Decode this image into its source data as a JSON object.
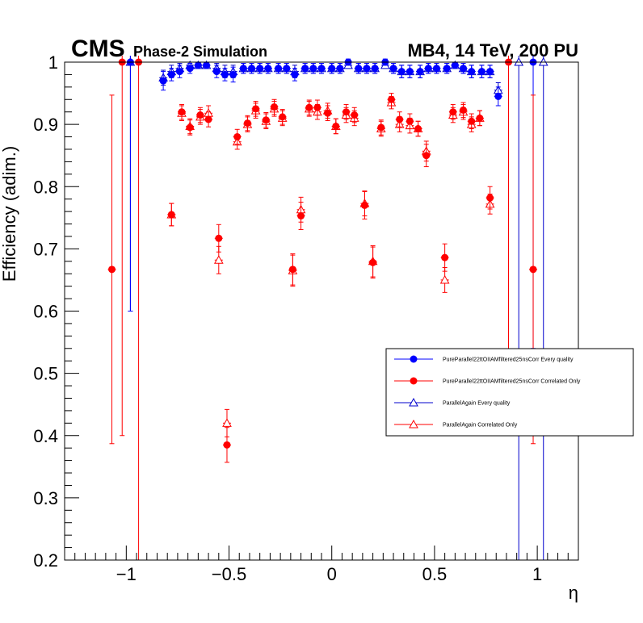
{
  "chart_data": {
    "type": "scatter",
    "title_left_bold": "CMS",
    "title_left_sub": "Phase-2 Simulation",
    "title_right": "MB4, 14 TeV, 200 PU",
    "xlabel": "η",
    "ylabel": "Efficiency (adim.)",
    "xlim": [
      -1.3,
      1.2
    ],
    "ylim": [
      0.2,
      1.0
    ],
    "xticks": [
      -1,
      -0.5,
      0,
      0.5,
      1
    ],
    "xtick_labels": [
      "−1",
      "−0.5",
      "0",
      "0.5",
      "1"
    ],
    "yticks": [
      0.2,
      0.3,
      0.4,
      0.5,
      0.6,
      0.7,
      0.8,
      0.9,
      1.0
    ],
    "ytick_labels": [
      "0.2",
      "0.3",
      "0.4",
      "0.5",
      "0.6",
      "0.7",
      "0.8",
      "0.9",
      "1"
    ],
    "legend_position": "center-right",
    "series": [
      {
        "name": "PureParallel22ttOIIAMfiltered25nsCorr Every quality",
        "color": "#0000ff",
        "marker": "filled-circle",
        "x": [
          -0.98,
          -0.82,
          -0.78,
          -0.74,
          -0.69,
          -0.65,
          -0.61,
          -0.56,
          -0.52,
          -0.48,
          -0.43,
          -0.39,
          -0.35,
          -0.31,
          -0.26,
          -0.22,
          -0.18,
          -0.13,
          -0.09,
          -0.05,
          0.0,
          0.04,
          0.08,
          0.13,
          0.17,
          0.21,
          0.26,
          0.3,
          0.34,
          0.38,
          0.43,
          0.47,
          0.51,
          0.56,
          0.6,
          0.64,
          0.68,
          0.73,
          0.77,
          0.81,
          0.98
        ],
        "y": [
          1.0,
          0.97,
          0.98,
          0.985,
          0.99,
          0.995,
          0.995,
          0.985,
          0.98,
          0.98,
          0.99,
          0.99,
          0.99,
          0.99,
          0.99,
          0.99,
          0.98,
          0.99,
          0.99,
          0.99,
          0.99,
          0.99,
          1.0,
          0.99,
          0.99,
          0.99,
          1.0,
          0.99,
          0.985,
          0.985,
          0.985,
          0.99,
          0.99,
          0.99,
          0.995,
          0.99,
          0.985,
          0.985,
          0.985,
          0.945,
          1.0
        ],
        "yerr": [
          0.4,
          0.015,
          0.01,
          0.01,
          0.008,
          0.005,
          0.005,
          0.01,
          0.01,
          0.012,
          0.008,
          0.008,
          0.008,
          0.008,
          0.008,
          0.008,
          0.01,
          0.008,
          0.008,
          0.008,
          0.008,
          0.008,
          0.005,
          0.008,
          0.008,
          0.008,
          0.005,
          0.008,
          0.01,
          0.01,
          0.01,
          0.008,
          0.008,
          0.008,
          0.005,
          0.008,
          0.01,
          0.01,
          0.01,
          0.015,
          0.46
        ]
      },
      {
        "name": "PureParallel22ttOIIAMfiltered25nsCorr Correlated Only",
        "color": "#ff0000",
        "marker": "filled-circle",
        "x": [
          -1.07,
          -1.02,
          -0.94,
          -0.78,
          -0.73,
          -0.69,
          -0.64,
          -0.6,
          -0.55,
          -0.51,
          -0.46,
          -0.41,
          -0.37,
          -0.32,
          -0.28,
          -0.24,
          -0.19,
          -0.15,
          -0.11,
          -0.07,
          -0.02,
          0.02,
          0.07,
          0.11,
          0.16,
          0.2,
          0.24,
          0.29,
          0.33,
          0.38,
          0.42,
          0.46,
          0.55,
          0.59,
          0.64,
          0.68,
          0.72,
          0.77,
          0.86,
          0.98
        ],
        "y": [
          0.667,
          1.0,
          1.0,
          0.755,
          0.92,
          0.895,
          0.915,
          0.908,
          0.717,
          0.385,
          0.88,
          0.902,
          0.925,
          0.907,
          0.928,
          0.912,
          0.667,
          0.753,
          0.927,
          0.927,
          0.918,
          0.897,
          0.92,
          0.915,
          0.77,
          0.678,
          0.895,
          0.94,
          0.908,
          0.905,
          0.893,
          0.85,
          0.686,
          0.92,
          0.923,
          0.905,
          0.91,
          0.782,
          1.0,
          0.667
        ],
        "yerr": [
          0.28,
          0.6,
          0.8,
          0.018,
          0.012,
          0.012,
          0.012,
          0.012,
          0.022,
          0.028,
          0.012,
          0.012,
          0.012,
          0.012,
          0.012,
          0.012,
          0.025,
          0.022,
          0.012,
          0.012,
          0.012,
          0.012,
          0.012,
          0.012,
          0.022,
          0.025,
          0.012,
          0.01,
          0.012,
          0.012,
          0.012,
          0.018,
          0.022,
          0.012,
          0.012,
          0.012,
          0.012,
          0.018,
          0.6,
          0.28
        ]
      },
      {
        "name": "ParallelAgain Every quality",
        "color": "#0000cc",
        "marker": "open-triangle",
        "x": [
          -0.98,
          -0.82,
          -0.78,
          -0.74,
          -0.69,
          -0.65,
          -0.61,
          -0.56,
          -0.52,
          -0.48,
          -0.43,
          -0.39,
          -0.35,
          -0.31,
          -0.26,
          -0.22,
          -0.18,
          -0.13,
          -0.09,
          -0.05,
          0.0,
          0.04,
          0.08,
          0.13,
          0.17,
          0.21,
          0.26,
          0.3,
          0.34,
          0.38,
          0.43,
          0.47,
          0.51,
          0.56,
          0.6,
          0.64,
          0.68,
          0.73,
          0.77,
          0.81,
          0.91,
          1.03
        ],
        "y": [
          1.0,
          0.975,
          0.985,
          0.99,
          0.995,
          0.995,
          0.995,
          0.99,
          0.985,
          0.985,
          0.99,
          0.99,
          0.99,
          0.99,
          0.99,
          0.99,
          0.985,
          0.99,
          0.99,
          0.99,
          0.99,
          0.99,
          0.995,
          0.99,
          0.99,
          0.99,
          0.995,
          0.99,
          0.985,
          0.985,
          0.985,
          0.99,
          0.99,
          0.99,
          0.995,
          0.99,
          0.985,
          0.985,
          0.985,
          0.955,
          1.0,
          1.0
        ],
        "yerr": [
          0.4,
          0.012,
          0.01,
          0.008,
          0.005,
          0.005,
          0.005,
          0.008,
          0.01,
          0.01,
          0.008,
          0.008,
          0.008,
          0.008,
          0.008,
          0.008,
          0.01,
          0.008,
          0.008,
          0.008,
          0.008,
          0.008,
          0.005,
          0.008,
          0.008,
          0.008,
          0.005,
          0.008,
          0.01,
          0.01,
          0.01,
          0.008,
          0.008,
          0.008,
          0.005,
          0.008,
          0.01,
          0.01,
          0.01,
          0.012,
          0.8,
          0.8
        ]
      },
      {
        "name": "ParallelAgain Correlated Only",
        "color": "#ff0000",
        "marker": "open-triangle",
        "x": [
          -0.78,
          -0.73,
          -0.69,
          -0.64,
          -0.6,
          -0.55,
          -0.51,
          -0.46,
          -0.41,
          -0.37,
          -0.32,
          -0.28,
          -0.24,
          -0.19,
          -0.15,
          -0.11,
          -0.07,
          -0.02,
          0.02,
          0.07,
          0.11,
          0.16,
          0.2,
          0.24,
          0.29,
          0.33,
          0.38,
          0.42,
          0.46,
          0.55,
          0.59,
          0.64,
          0.68,
          0.72,
          0.77
        ],
        "y": [
          0.755,
          0.918,
          0.897,
          0.912,
          0.918,
          0.682,
          0.42,
          0.872,
          0.9,
          0.922,
          0.905,
          0.925,
          0.91,
          0.665,
          0.763,
          0.925,
          0.92,
          0.922,
          0.897,
          0.915,
          0.91,
          0.773,
          0.68,
          0.893,
          0.935,
          0.9,
          0.898,
          0.893,
          0.857,
          0.65,
          0.915,
          0.92,
          0.9,
          0.91,
          0.772
        ],
        "yerr": [
          0.018,
          0.012,
          0.012,
          0.012,
          0.012,
          0.022,
          0.022,
          0.012,
          0.012,
          0.012,
          0.012,
          0.012,
          0.012,
          0.025,
          0.02,
          0.012,
          0.012,
          0.012,
          0.012,
          0.012,
          0.012,
          0.02,
          0.025,
          0.012,
          0.01,
          0.012,
          0.012,
          0.012,
          0.016,
          0.02,
          0.012,
          0.012,
          0.012,
          0.012,
          0.016
        ]
      }
    ]
  }
}
